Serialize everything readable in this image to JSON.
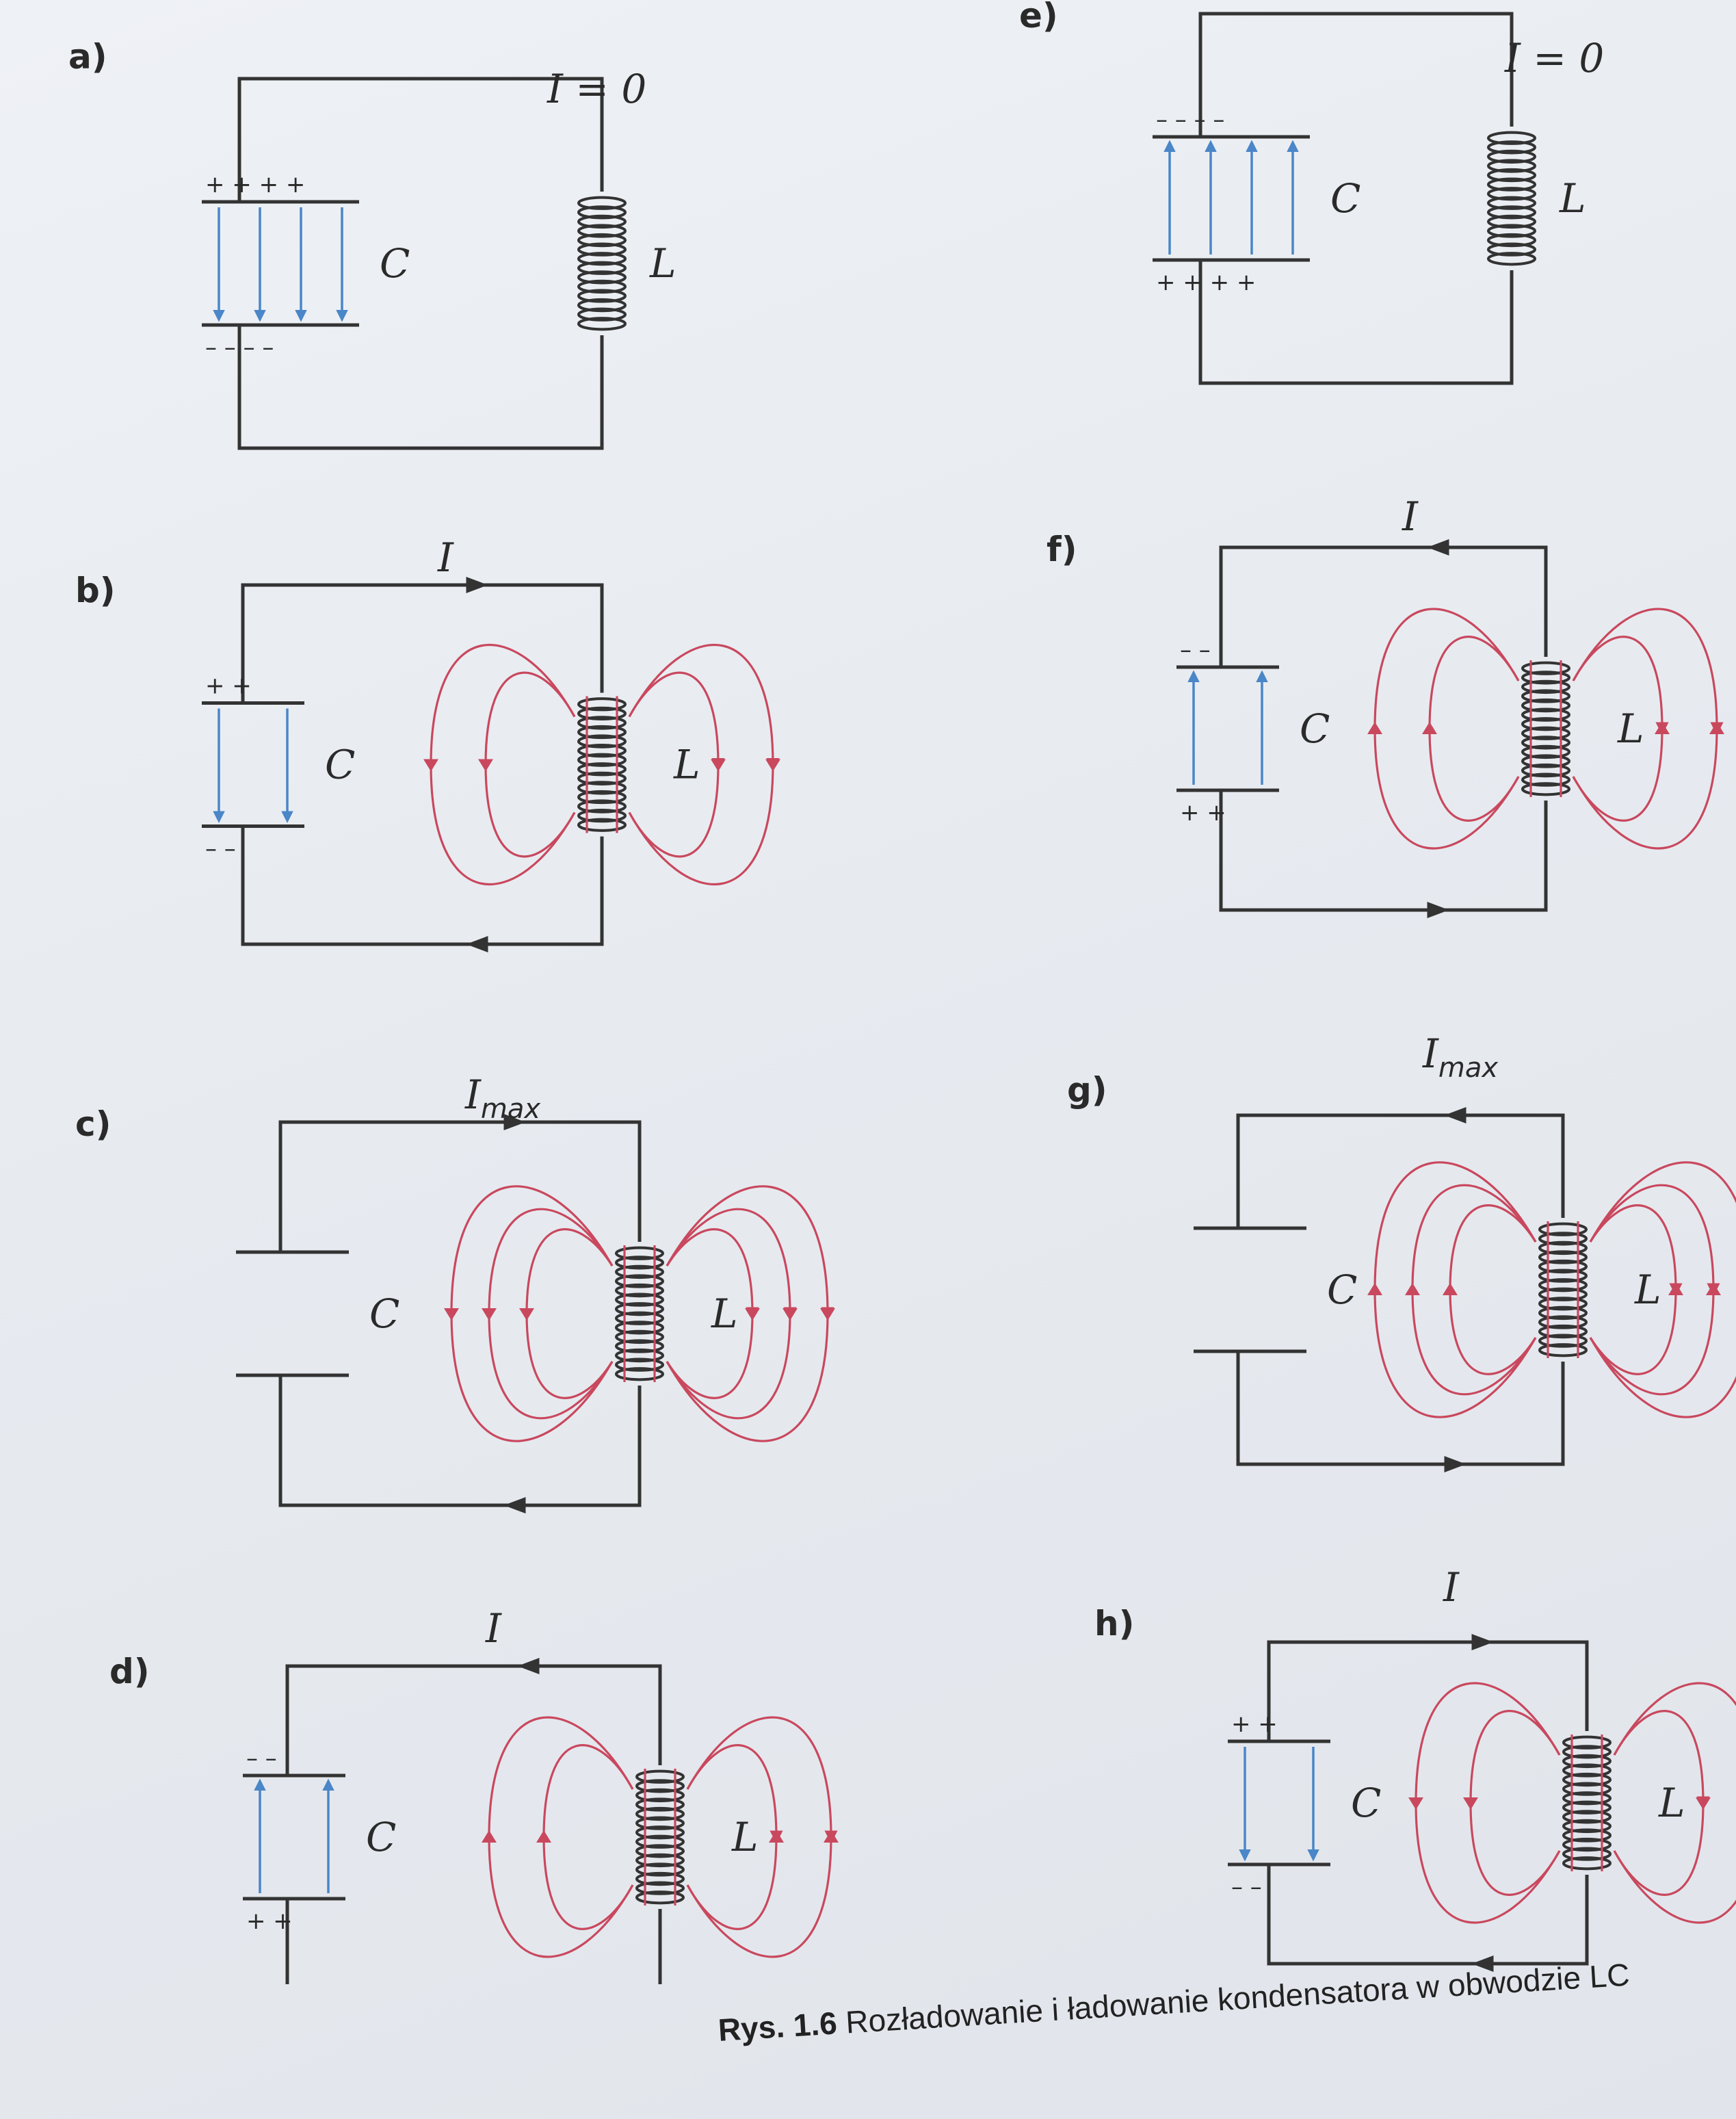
{
  "caption": {
    "number": "Rys. 1.6",
    "text": "Rozładowanie i ładowanie kondensatora w obwodzie LC"
  },
  "symbols": {
    "capacitor": "C",
    "inductor": "L"
  },
  "panels": [
    {
      "id": "a",
      "label": "a)",
      "current": "I = 0",
      "current_sub": "",
      "top_charge": "+ + | + +",
      "bottom_charge": "– – | – –",
      "magnetic_field": "none"
    },
    {
      "id": "b",
      "label": "b)",
      "current": "I",
      "current_sub": "",
      "top_charge": "+ +",
      "bottom_charge": "– –",
      "magnetic_field": "moderate"
    },
    {
      "id": "c",
      "label": "c)",
      "current": "I",
      "current_sub": "max",
      "top_charge": "",
      "bottom_charge": "",
      "magnetic_field": "maximum"
    },
    {
      "id": "d",
      "label": "d)",
      "current": "I",
      "current_sub": "",
      "top_charge": "– –",
      "bottom_charge": "+ +",
      "magnetic_field": "moderate"
    },
    {
      "id": "e",
      "label": "e)",
      "current": "I = 0",
      "current_sub": "",
      "top_charge": "– – | – –",
      "bottom_charge": "+ + | + +",
      "magnetic_field": "none"
    },
    {
      "id": "f",
      "label": "f)",
      "current": "I",
      "current_sub": "",
      "top_charge": "– –",
      "bottom_charge": "+ +",
      "magnetic_field": "moderate"
    },
    {
      "id": "g",
      "label": "g)",
      "current": "I",
      "current_sub": "max",
      "top_charge": "",
      "bottom_charge": "",
      "magnetic_field": "maximum"
    },
    {
      "id": "h",
      "label": "h)",
      "current": "I",
      "current_sub": "",
      "top_charge": "+ +",
      "bottom_charge": "– –",
      "magnetic_field": "moderate"
    }
  ],
  "colors": {
    "electric_field": "#4a86c8",
    "magnetic_field": "#c9485e",
    "wire": "#333333"
  }
}
